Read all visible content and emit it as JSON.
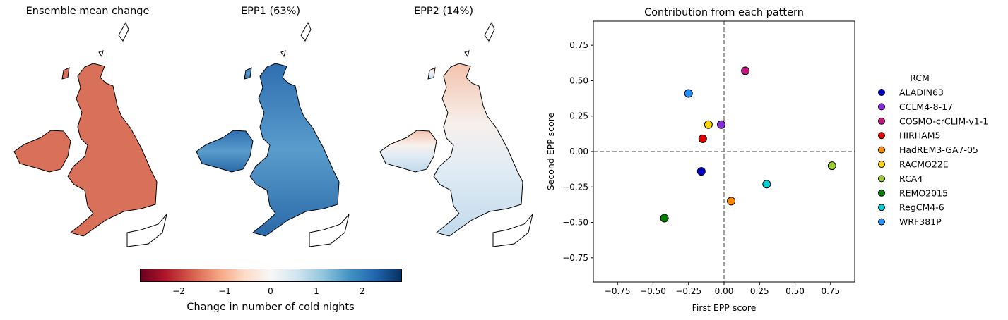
{
  "maps": [
    {
      "title": "Ensemble mean change",
      "fill": "#d9705a",
      "style": "uniform"
    },
    {
      "title": "EPP1 (63%)",
      "fill": "#4b8fc4",
      "style": "blue"
    },
    {
      "title": "EPP2 (14%)",
      "fill": "#e9f1f8",
      "style": "mixed"
    }
  ],
  "colorbar": {
    "label": "Change in number of cold nights",
    "ticks": [
      "−2",
      "−1",
      "0",
      "1",
      "2"
    ],
    "tick_values": [
      -2,
      -1,
      0,
      1,
      2
    ],
    "range": [
      -2.8,
      2.8
    ],
    "colors": [
      "#67001f",
      "#b2182b",
      "#d6604d",
      "#f4a582",
      "#fddbc7",
      "#f7f7f7",
      "#d1e5f0",
      "#92c5de",
      "#4393c3",
      "#2166ac",
      "#053061"
    ]
  },
  "chart_data": {
    "type": "scatter",
    "title": "Contribution from each pattern",
    "xlabel": "First EPP score",
    "ylabel": "Second EPP score",
    "xlim": [
      -0.92,
      0.92
    ],
    "ylim": [
      -0.92,
      0.92
    ],
    "xticks": [
      -0.75,
      -0.5,
      -0.25,
      0.0,
      0.25,
      0.5,
      0.75
    ],
    "yticks": [
      -0.75,
      -0.5,
      -0.25,
      0.0,
      0.25,
      0.5,
      0.75
    ],
    "xtick_labels": [
      "−0.75",
      "−0.50",
      "−0.25",
      "0.00",
      "0.25",
      "0.50",
      "0.75"
    ],
    "ytick_labels": [
      "−0.75",
      "−0.50",
      "−0.25",
      "0.00",
      "0.25",
      "0.50",
      "0.75"
    ],
    "reference_lines": {
      "x": 0,
      "y": 0,
      "style": "dashed",
      "color": "#808080"
    },
    "legend": {
      "title": "RCM",
      "placement": "right"
    },
    "points": [
      {
        "name": "ALADIN63",
        "x": -0.16,
        "y": -0.14,
        "color": "#0000c8"
      },
      {
        "name": "CCLM4-8-17",
        "x": -0.02,
        "y": 0.19,
        "color": "#8a2be2"
      },
      {
        "name": "COSMO-crCLIM-v1-1",
        "x": 0.15,
        "y": 0.57,
        "color": "#c71585"
      },
      {
        "name": "HIRHAM5",
        "x": -0.15,
        "y": 0.09,
        "color": "#e00000"
      },
      {
        "name": "HadREM3-GA7-05",
        "x": 0.05,
        "y": -0.35,
        "color": "#ff8c00"
      },
      {
        "name": "RACMO22E",
        "x": -0.11,
        "y": 0.19,
        "color": "#ffd700"
      },
      {
        "name": "RCA4",
        "x": 0.76,
        "y": -0.1,
        "color": "#9acd32"
      },
      {
        "name": "REMO2015",
        "x": -0.42,
        "y": -0.47,
        "color": "#008000"
      },
      {
        "name": "RegCM4-6",
        "x": 0.3,
        "y": -0.23,
        "color": "#00ced1"
      },
      {
        "name": "WRF381P",
        "x": -0.25,
        "y": 0.41,
        "color": "#1e90ff"
      }
    ]
  }
}
